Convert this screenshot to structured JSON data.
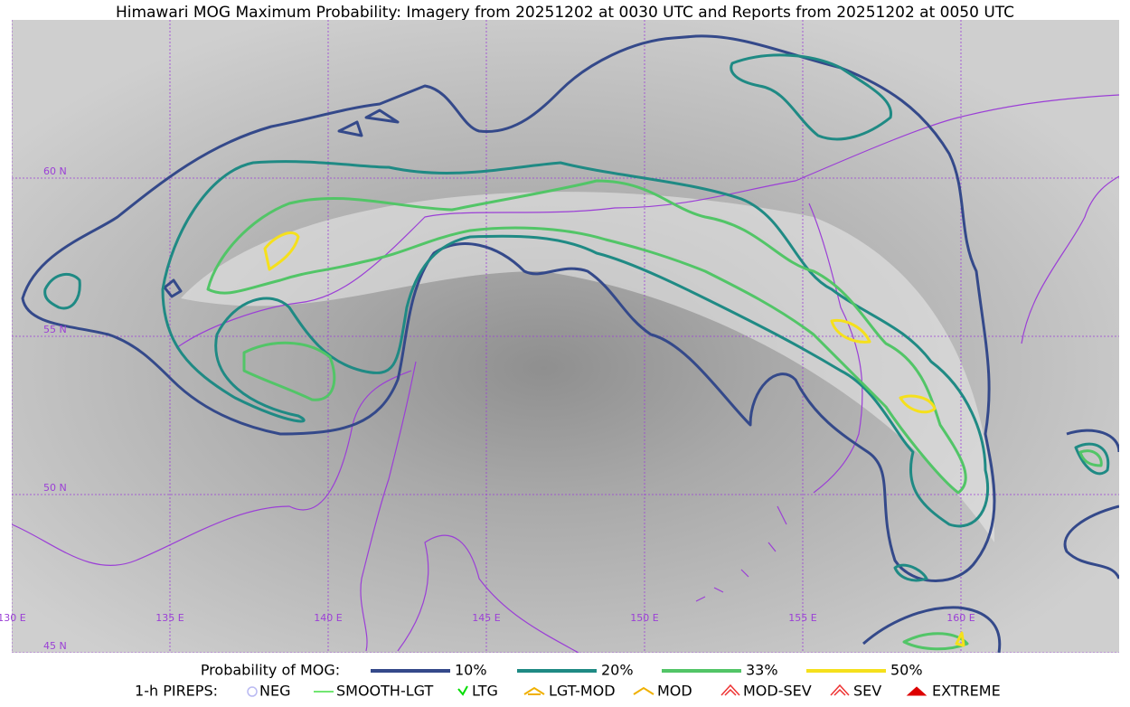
{
  "title": "Himawari MOG Maximum Probability: Imagery from 20251202 at 0030 UTC and Reports from 20251202 at 0050 UTC",
  "map": {
    "lat_lines": [
      {
        "value": 60,
        "label": "60 N"
      },
      {
        "value": 55,
        "label": "55 N"
      },
      {
        "value": 50,
        "label": "50 N"
      },
      {
        "value": 45,
        "label": "45 N"
      }
    ],
    "lon_lines": [
      {
        "value": 130,
        "label": "130 E"
      },
      {
        "value": 135,
        "label": "135 E"
      },
      {
        "value": 140,
        "label": "140 E"
      },
      {
        "value": 145,
        "label": "145 E"
      },
      {
        "value": 150,
        "label": "150 E"
      },
      {
        "value": 155,
        "label": "155 E"
      },
      {
        "value": 160,
        "label": "160 E"
      }
    ]
  },
  "legend": {
    "probability": {
      "title": "Probability of MOG:",
      "entries": [
        {
          "label": "10%",
          "color": "#34498a"
        },
        {
          "label": "20%",
          "color": "#1f8a84"
        },
        {
          "label": "33%",
          "color": "#52c567"
        },
        {
          "label": "50%",
          "color": "#f5e01c"
        }
      ]
    },
    "pireps": {
      "title": "1-h PIREPS:",
      "entries": [
        {
          "label": "NEG",
          "color": "#b9b9f2"
        },
        {
          "label": "SMOOTH-LGT",
          "color": "#44dd44"
        },
        {
          "label": "LTG",
          "color": "#00dd00"
        },
        {
          "label": "LGT-MOD",
          "color": "#f0b000"
        },
        {
          "label": "MOD",
          "color": "#f0b000"
        },
        {
          "label": "MOD-SEV",
          "color": "#ee3333"
        },
        {
          "label": "SEV",
          "color": "#ee3333"
        },
        {
          "label": "EXTREME",
          "color": "#dd0000"
        }
      ]
    }
  }
}
